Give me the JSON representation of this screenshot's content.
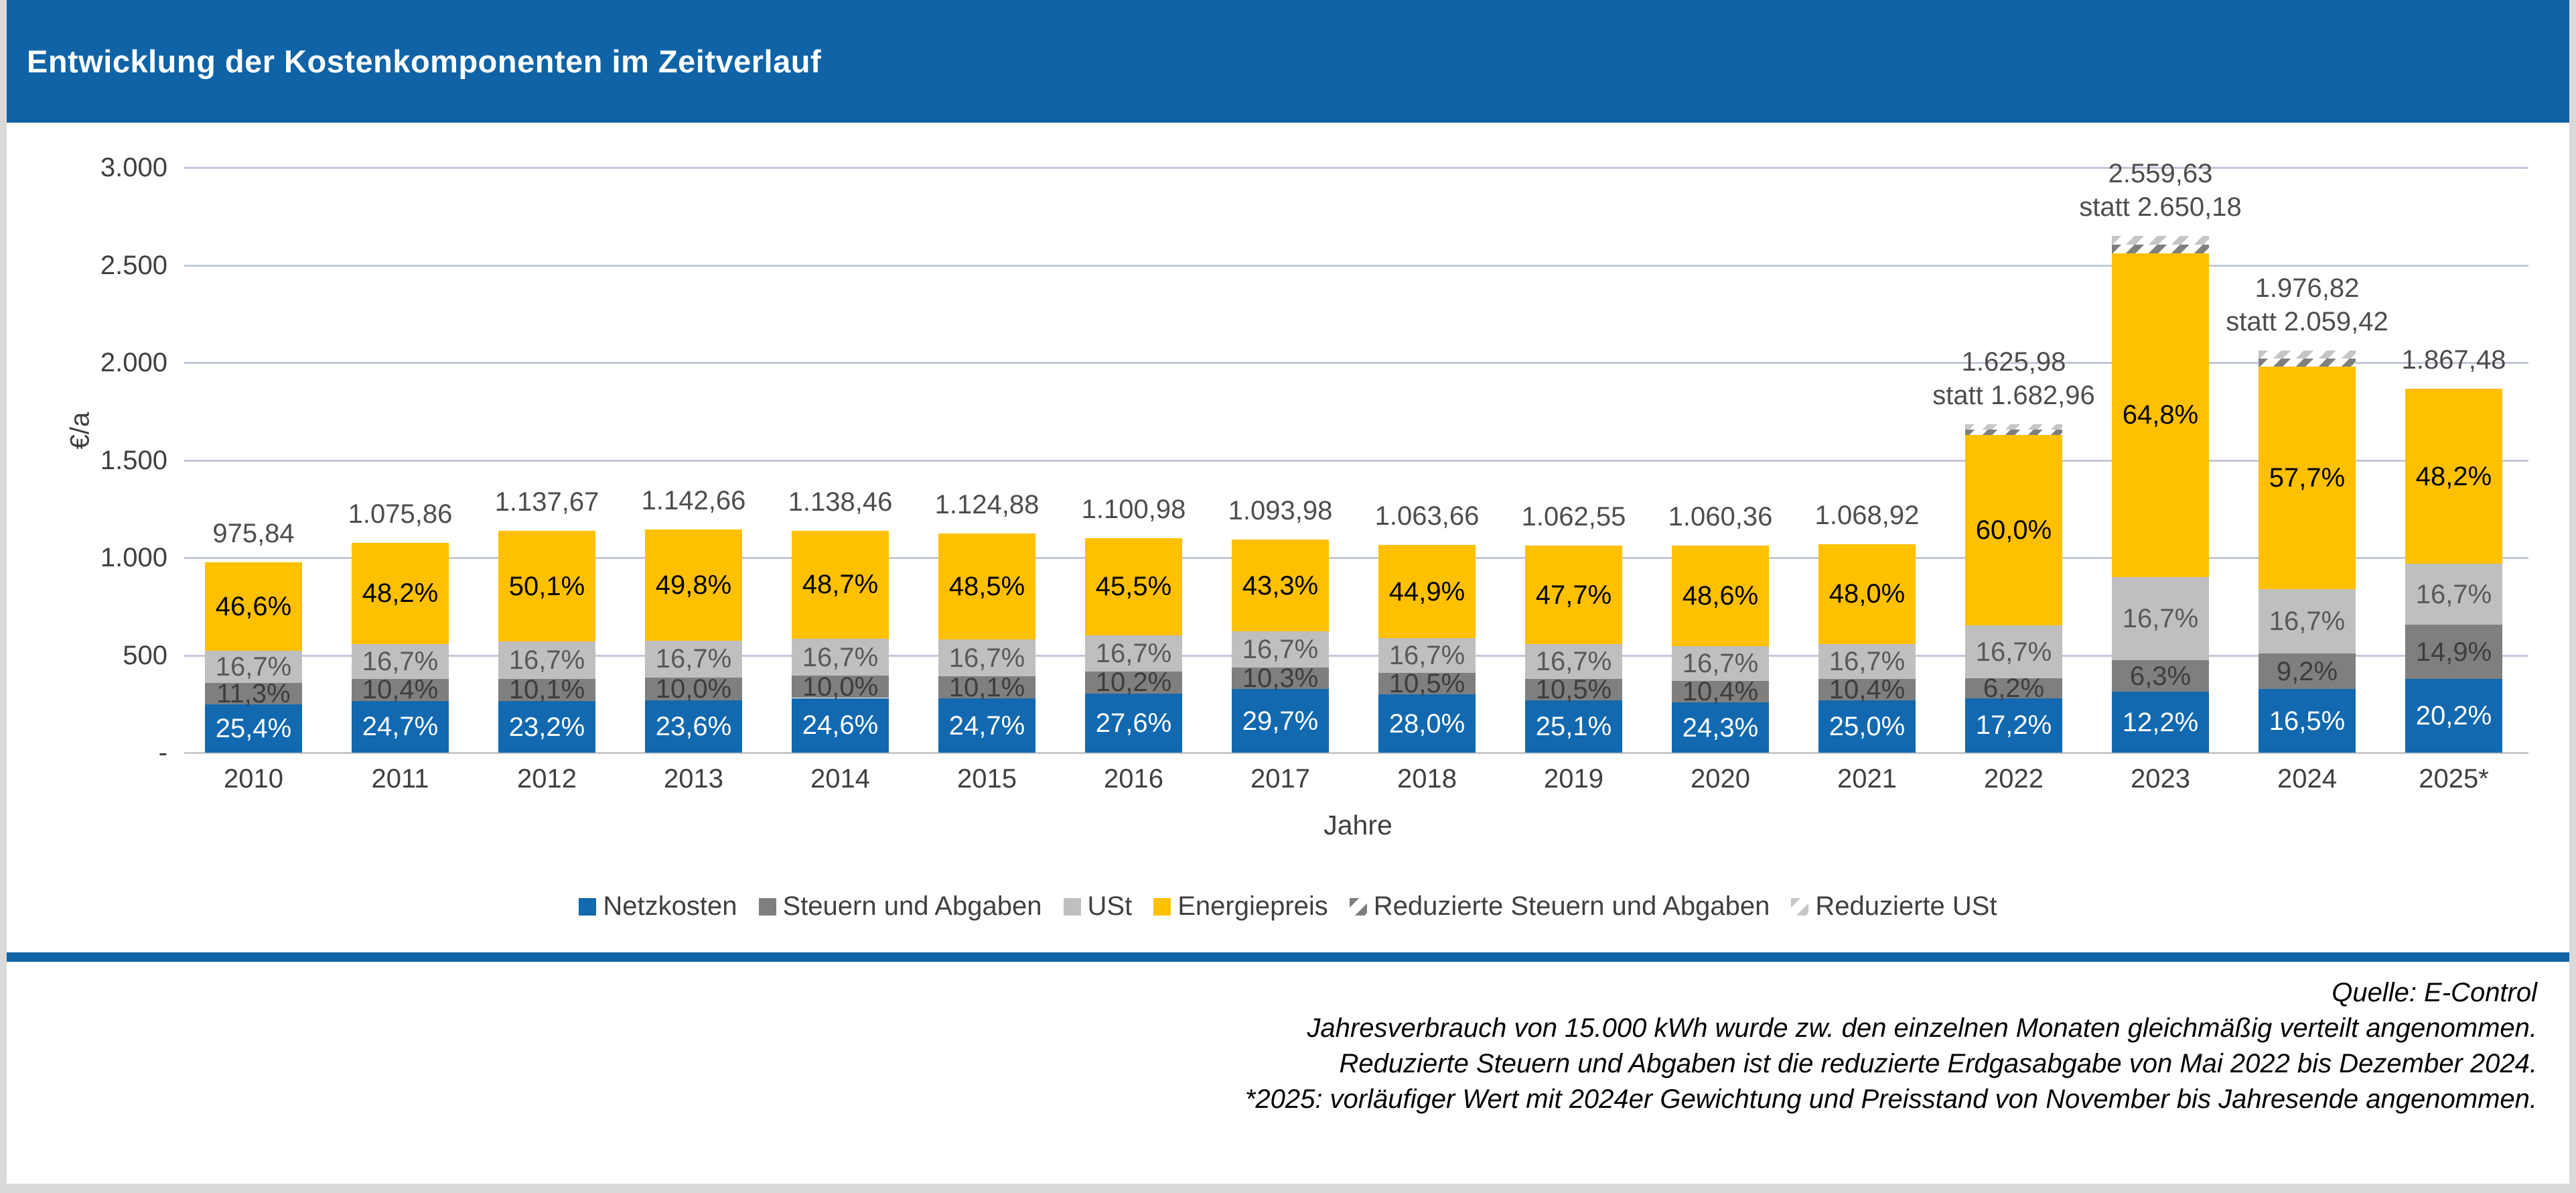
{
  "header": {
    "title": "Entwicklung der Kostenkomponenten im Zeitverlauf"
  },
  "colors": {
    "header_blue": "#0F63A6",
    "separator_blue": "#0F63A6",
    "netzkosten_blue": "#1269B0",
    "steuern_gray": "#7F7F7F",
    "ust_gray": "#BFBFBF",
    "energiepreis_yellow": "#FFC000",
    "gridline": "#C2C8D8",
    "axis_text": "#3F3F3F",
    "frame_gray": "#D9D9D9"
  },
  "chart_data": {
    "type": "bar",
    "stacked": true,
    "title": "Entwicklung der Kostenkomponenten im Zeitverlauf",
    "xlabel": "Jahre",
    "ylabel": "€/a",
    "ylim": [
      0,
      3000
    ],
    "ytick_interval": 500,
    "ytick_labels": [
      "3.000",
      "2.500",
      "2.000",
      "1.500",
      "1.000",
      "500",
      "-"
    ],
    "grid": true,
    "legend_position": "bottom",
    "categories": [
      "2010",
      "2011",
      "2012",
      "2013",
      "2014",
      "2015",
      "2016",
      "2017",
      "2018",
      "2019",
      "2020",
      "2021",
      "2022",
      "2023",
      "2024",
      "2025*"
    ],
    "totals": [
      975.84,
      1075.86,
      1137.67,
      1142.66,
      1138.46,
      1124.88,
      1100.98,
      1093.98,
      1063.66,
      1062.55,
      1060.36,
      1068.92,
      1625.98,
      2559.63,
      1976.82,
      1867.48
    ],
    "total_labels": [
      "975,84",
      "1.075,86",
      "1.137,67",
      "1.142,66",
      "1.138,46",
      "1.124,88",
      "1.100,98",
      "1.093,98",
      "1.063,66",
      "1.062,55",
      "1.060,36",
      "1.068,92",
      "1.625,98",
      "2.559,63",
      "1.976,82",
      "1.867,48"
    ],
    "statt_labels": [
      "",
      "",
      "",
      "",
      "",
      "",
      "",
      "",
      "",
      "",
      "",
      "",
      "statt 1.682,96",
      "statt 2.650,18",
      "statt 2.059,42",
      ""
    ],
    "pre_reduction_totals": [
      null,
      null,
      null,
      null,
      null,
      null,
      null,
      null,
      null,
      null,
      null,
      null,
      1682.96,
      2650.18,
      2059.42,
      null
    ],
    "series": [
      {
        "name": "Netzkosten",
        "color": "#1269B0",
        "label_color": "#FFFFFF",
        "pct": [
          25.4,
          24.7,
          23.2,
          23.6,
          24.6,
          24.7,
          27.6,
          29.7,
          28.0,
          25.1,
          24.3,
          25.0,
          17.2,
          12.2,
          16.5,
          20.2
        ],
        "labels": [
          "25,4%",
          "24,7%",
          "23,2%",
          "23,6%",
          "24,6%",
          "24,7%",
          "27,6%",
          "29,7%",
          "28,0%",
          "25,1%",
          "24,3%",
          "25,0%",
          "17,2%",
          "12,2%",
          "16,5%",
          "20,2%"
        ]
      },
      {
        "name": "Steuern und Abgaben",
        "color": "#7F7F7F",
        "label_color": "#3D3D3D",
        "pct": [
          11.3,
          10.4,
          10.1,
          10.0,
          10.0,
          10.1,
          10.2,
          10.3,
          10.5,
          10.5,
          10.4,
          10.4,
          6.2,
          6.3,
          9.2,
          14.9
        ],
        "labels": [
          "11,3%",
          "10,4%",
          "10,1%",
          "10,0%",
          "10,0%",
          "10,1%",
          "10,2%",
          "10,3%",
          "10,5%",
          "10,5%",
          "10,4%",
          "10,4%",
          "6,2%",
          "6,3%",
          "9,2%",
          "14,9%"
        ]
      },
      {
        "name": "USt",
        "color": "#BFBFBF",
        "label_color": "#595959",
        "pct": [
          16.7,
          16.7,
          16.7,
          16.7,
          16.7,
          16.7,
          16.7,
          16.7,
          16.7,
          16.7,
          16.7,
          16.7,
          16.7,
          16.7,
          16.7,
          16.7
        ],
        "labels": [
          "16,7%",
          "16,7%",
          "16,7%",
          "16,7%",
          "16,7%",
          "16,7%",
          "16,7%",
          "16,7%",
          "16,7%",
          "16,7%",
          "16,7%",
          "16,7%",
          "16,7%",
          "16,7%",
          "16,7%",
          "16,7%"
        ]
      },
      {
        "name": "Energiepreis",
        "color": "#FFC000",
        "label_color": "#000000",
        "pct": [
          46.6,
          48.2,
          50.1,
          49.8,
          48.7,
          48.5,
          45.5,
          43.3,
          44.9,
          47.7,
          48.6,
          48.0,
          60.0,
          64.8,
          57.7,
          48.2
        ],
        "labels": [
          "46,6%",
          "48,2%",
          "50,1%",
          "49,8%",
          "48,7%",
          "48,5%",
          "45,5%",
          "43,3%",
          "44,9%",
          "47,7%",
          "48,6%",
          "48,0%",
          "60,0%",
          "64,8%",
          "57,7%",
          "48,2%"
        ]
      }
    ],
    "reduced_series": [
      {
        "name": "Reduzierte Steuern und Abgaben",
        "style": "hatch-dark"
      },
      {
        "name": "Reduzierte USt",
        "style": "hatch-light"
      }
    ],
    "legend": [
      "Netzkosten",
      "Steuern und Abgaben",
      "USt",
      "Energiepreis",
      "Reduzierte Steuern und Abgaben",
      "Reduzierte USt"
    ]
  },
  "footer": {
    "lines": [
      "Quelle: E-Control",
      "Jahresverbrauch von 15.000 kWh wurde zw. den einzelnen Monaten gleichmäßig verteilt angenommen.",
      "Reduzierte Steuern und Abgaben ist die reduzierte Erdgasabgabe von Mai 2022 bis Dezember 2024.",
      "*2025: vorläufiger Wert mit 2024er Gewichtung und Preisstand von November bis Jahresende angenommen."
    ]
  }
}
